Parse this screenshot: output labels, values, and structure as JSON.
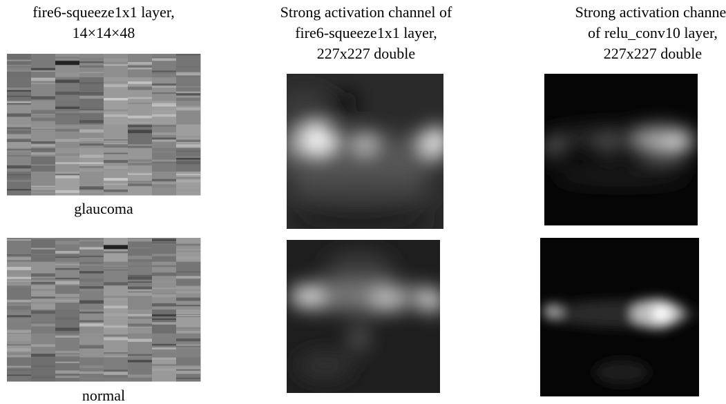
{
  "columns": [
    {
      "title_lines": [
        "fire6-squeeze1x1 layer,",
        "14×14×48"
      ]
    },
    {
      "title_lines": [
        "Strong activation channel of",
        "fire6-squeeze1x1 layer,",
        "227x227 double"
      ]
    },
    {
      "title_lines": [
        "Strong activation channel",
        "of relu_conv10 layer,",
        "227x227 double"
      ]
    }
  ],
  "row_labels": [
    "glaucoma",
    "normal"
  ]
}
